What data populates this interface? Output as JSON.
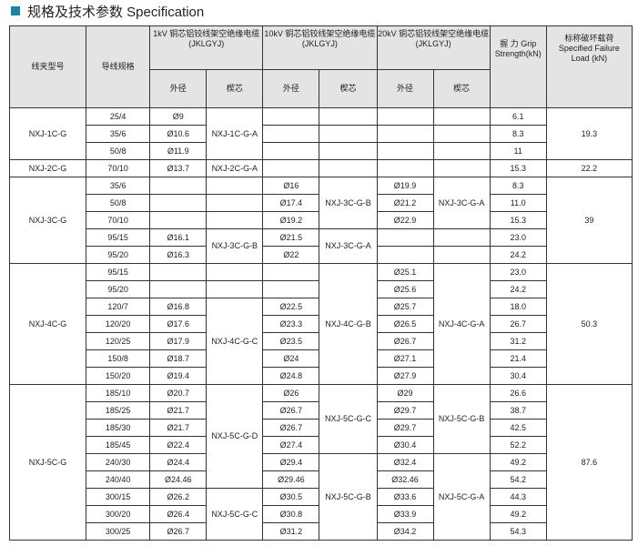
{
  "title": "规格及技术参数 Specification",
  "colors": {
    "accent": "#1787a6",
    "header_bg": "#e4e4e4"
  },
  "table": {
    "headers": {
      "model": "线夹型号",
      "spec": "导线规格",
      "kv1": "1kV 铜芯铝铰线架空绝缘电缆 (JKLGYJ)",
      "kv10": "10kV 铜芯铝铰线架空绝缘电缆(JKLGYJ)",
      "kv20": "20kV 铜芯铝铰线架空绝缘电缆(JKLGYJ)",
      "grip": "握 力 Grip Strength(kN)",
      "load": "标称破坏载荷 Specified Failure Load (kN)",
      "outer_diameter": "外径",
      "core": "楔芯"
    },
    "groups": [
      {
        "model": "NXJ-1C-G",
        "load": "19.3",
        "rows": [
          {
            "spec": "25/4",
            "d1": "Ø9",
            "d10": "",
            "d20": "",
            "grip": "6.1"
          },
          {
            "spec": "35/6",
            "d1": "Ø10.6",
            "d10": "",
            "d20": "",
            "grip": "8.3"
          },
          {
            "spec": "50/8",
            "d1": "Ø11.9",
            "d10": "",
            "d20": "",
            "grip": "11"
          }
        ],
        "c1": [
          {
            "label": "NXJ-1C-G-A",
            "span": 3
          }
        ],
        "c10": [
          {
            "label": "",
            "span": 1
          },
          {
            "label": "",
            "span": 1
          },
          {
            "label": "",
            "span": 1
          }
        ],
        "c20": [
          {
            "label": "",
            "span": 1
          },
          {
            "label": "",
            "span": 1
          },
          {
            "label": "",
            "span": 1
          }
        ]
      },
      {
        "model": "NXJ-2C-G",
        "load": "22.2",
        "rows": [
          {
            "spec": "70/10",
            "d1": "Ø13.7",
            "d10": "",
            "d20": "",
            "grip": "15.3"
          }
        ],
        "c1": [
          {
            "label": "NXJ-2C-G-A",
            "span": 1
          }
        ],
        "c10": [
          {
            "label": "",
            "span": 1
          }
        ],
        "c20": [
          {
            "label": "",
            "span": 1
          }
        ]
      },
      {
        "model": "NXJ-3C-G",
        "load": "39",
        "rows": [
          {
            "spec": "35/6",
            "d1": "",
            "d10": "Ø16",
            "d20": "Ø19.9",
            "grip": "8.3"
          },
          {
            "spec": "50/8",
            "d1": "",
            "d10": "Ø17.4",
            "d20": "Ø21.2",
            "grip": "11.0"
          },
          {
            "spec": "70/10",
            "d1": "",
            "d10": "Ø19.2",
            "d20": "Ø22.9",
            "grip": "15.3"
          },
          {
            "spec": "95/15",
            "d1": "Ø16.1",
            "d10": "Ø21.5",
            "d20": "",
            "grip": "23.0"
          },
          {
            "spec": "95/20",
            "d1": "Ø16.3",
            "d10": "Ø22",
            "d20": "",
            "grip": "24.2"
          }
        ],
        "c1": [
          {
            "label": "",
            "span": 1
          },
          {
            "label": "",
            "span": 1
          },
          {
            "label": "",
            "span": 1
          },
          {
            "label": "NXJ-3C-G-B",
            "span": 2
          }
        ],
        "c10": [
          {
            "label": "NXJ-3C-G-B",
            "span": 3
          },
          {
            "label": "NXJ-3C-G-A",
            "span": 2
          }
        ],
        "c20": [
          {
            "label": "NXJ-3C-G-A",
            "span": 3
          },
          {
            "label": "",
            "span": 1
          },
          {
            "label": "",
            "span": 1
          }
        ]
      },
      {
        "model": "NXJ-4C-G",
        "load": "50.3",
        "rows": [
          {
            "spec": "95/15",
            "d1": "",
            "d10": "",
            "d20": "Ø25.1",
            "grip": "23.0"
          },
          {
            "spec": "95/20",
            "d1": "",
            "d10": "",
            "d20": "Ø25.6",
            "grip": "24.2"
          },
          {
            "spec": "120/7",
            "d1": "Ø16.8",
            "d10": "Ø22.5",
            "d20": "Ø25.7",
            "grip": "18.0"
          },
          {
            "spec": "120/20",
            "d1": "Ø17.6",
            "d10": "Ø23.3",
            "d20": "Ø26.5",
            "grip": "26.7"
          },
          {
            "spec": "120/25",
            "d1": "Ø17.9",
            "d10": "Ø23.5",
            "d20": "Ø26.7",
            "grip": "31.2"
          },
          {
            "spec": "150/8",
            "d1": "Ø18.7",
            "d10": "Ø24",
            "d20": "Ø27.1",
            "grip": "21.4"
          },
          {
            "spec": "150/20",
            "d1": "Ø19.4",
            "d10": "Ø24.8",
            "d20": "Ø27.9",
            "grip": "30.4"
          }
        ],
        "c1": [
          {
            "label": "",
            "span": 1
          },
          {
            "label": "",
            "span": 1
          },
          {
            "label": "NXJ-4C-G-C",
            "span": 5
          }
        ],
        "c10": [
          {
            "label": "NXJ-4C-G-B",
            "span": 7
          }
        ],
        "c20": [
          {
            "label": "NXJ-4C-G-A",
            "span": 7
          }
        ]
      },
      {
        "model": "NXJ-5C-G",
        "load": "87.6",
        "rows": [
          {
            "spec": "185/10",
            "d1": "Ø20.7",
            "d10": "Ø26",
            "d20": "Ø29",
            "grip": "26.6"
          },
          {
            "spec": "185/25",
            "d1": "Ø21.7",
            "d10": "Ø26.7",
            "d20": "Ø29.7",
            "grip": "38.7"
          },
          {
            "spec": "185/30",
            "d1": "Ø21.7",
            "d10": "Ø26.7",
            "d20": "Ø29.7",
            "grip": "42.5"
          },
          {
            "spec": "185/45",
            "d1": "Ø22.4",
            "d10": "Ø27.4",
            "d20": "Ø30.4",
            "grip": "52.2"
          },
          {
            "spec": "240/30",
            "d1": "Ø24.4",
            "d10": "Ø29.4",
            "d20": "Ø32.4",
            "grip": "49.2"
          },
          {
            "spec": "240/40",
            "d1": "Ø24.46",
            "d10": "Ø29.46",
            "d20": "Ø32.46",
            "grip": "54.2"
          },
          {
            "spec": "300/15",
            "d1": "Ø26.2",
            "d10": "Ø30.5",
            "d20": "Ø33.6",
            "grip": "44.3"
          },
          {
            "spec": "300/20",
            "d1": "Ø26.4",
            "d10": "Ø30.8",
            "d20": "Ø33.9",
            "grip": "49.2"
          },
          {
            "spec": "300/25",
            "d1": "Ø26.7",
            "d10": "Ø31.2",
            "d20": "Ø34.2",
            "grip": "54.3"
          }
        ],
        "c1": [
          {
            "label": "NXJ-5C-G-D",
            "span": 6
          },
          {
            "label": "NXJ-5C-G-C",
            "span": 3
          }
        ],
        "c10": [
          {
            "label": "NXJ-5C-G-C",
            "span": 4
          },
          {
            "label": "NXJ-5C-G-B",
            "span": 5
          }
        ],
        "c20": [
          {
            "label": "NXJ-5C-G-B",
            "span": 4
          },
          {
            "label": "NXJ-5C-G-A",
            "span": 5
          }
        ]
      }
    ]
  }
}
